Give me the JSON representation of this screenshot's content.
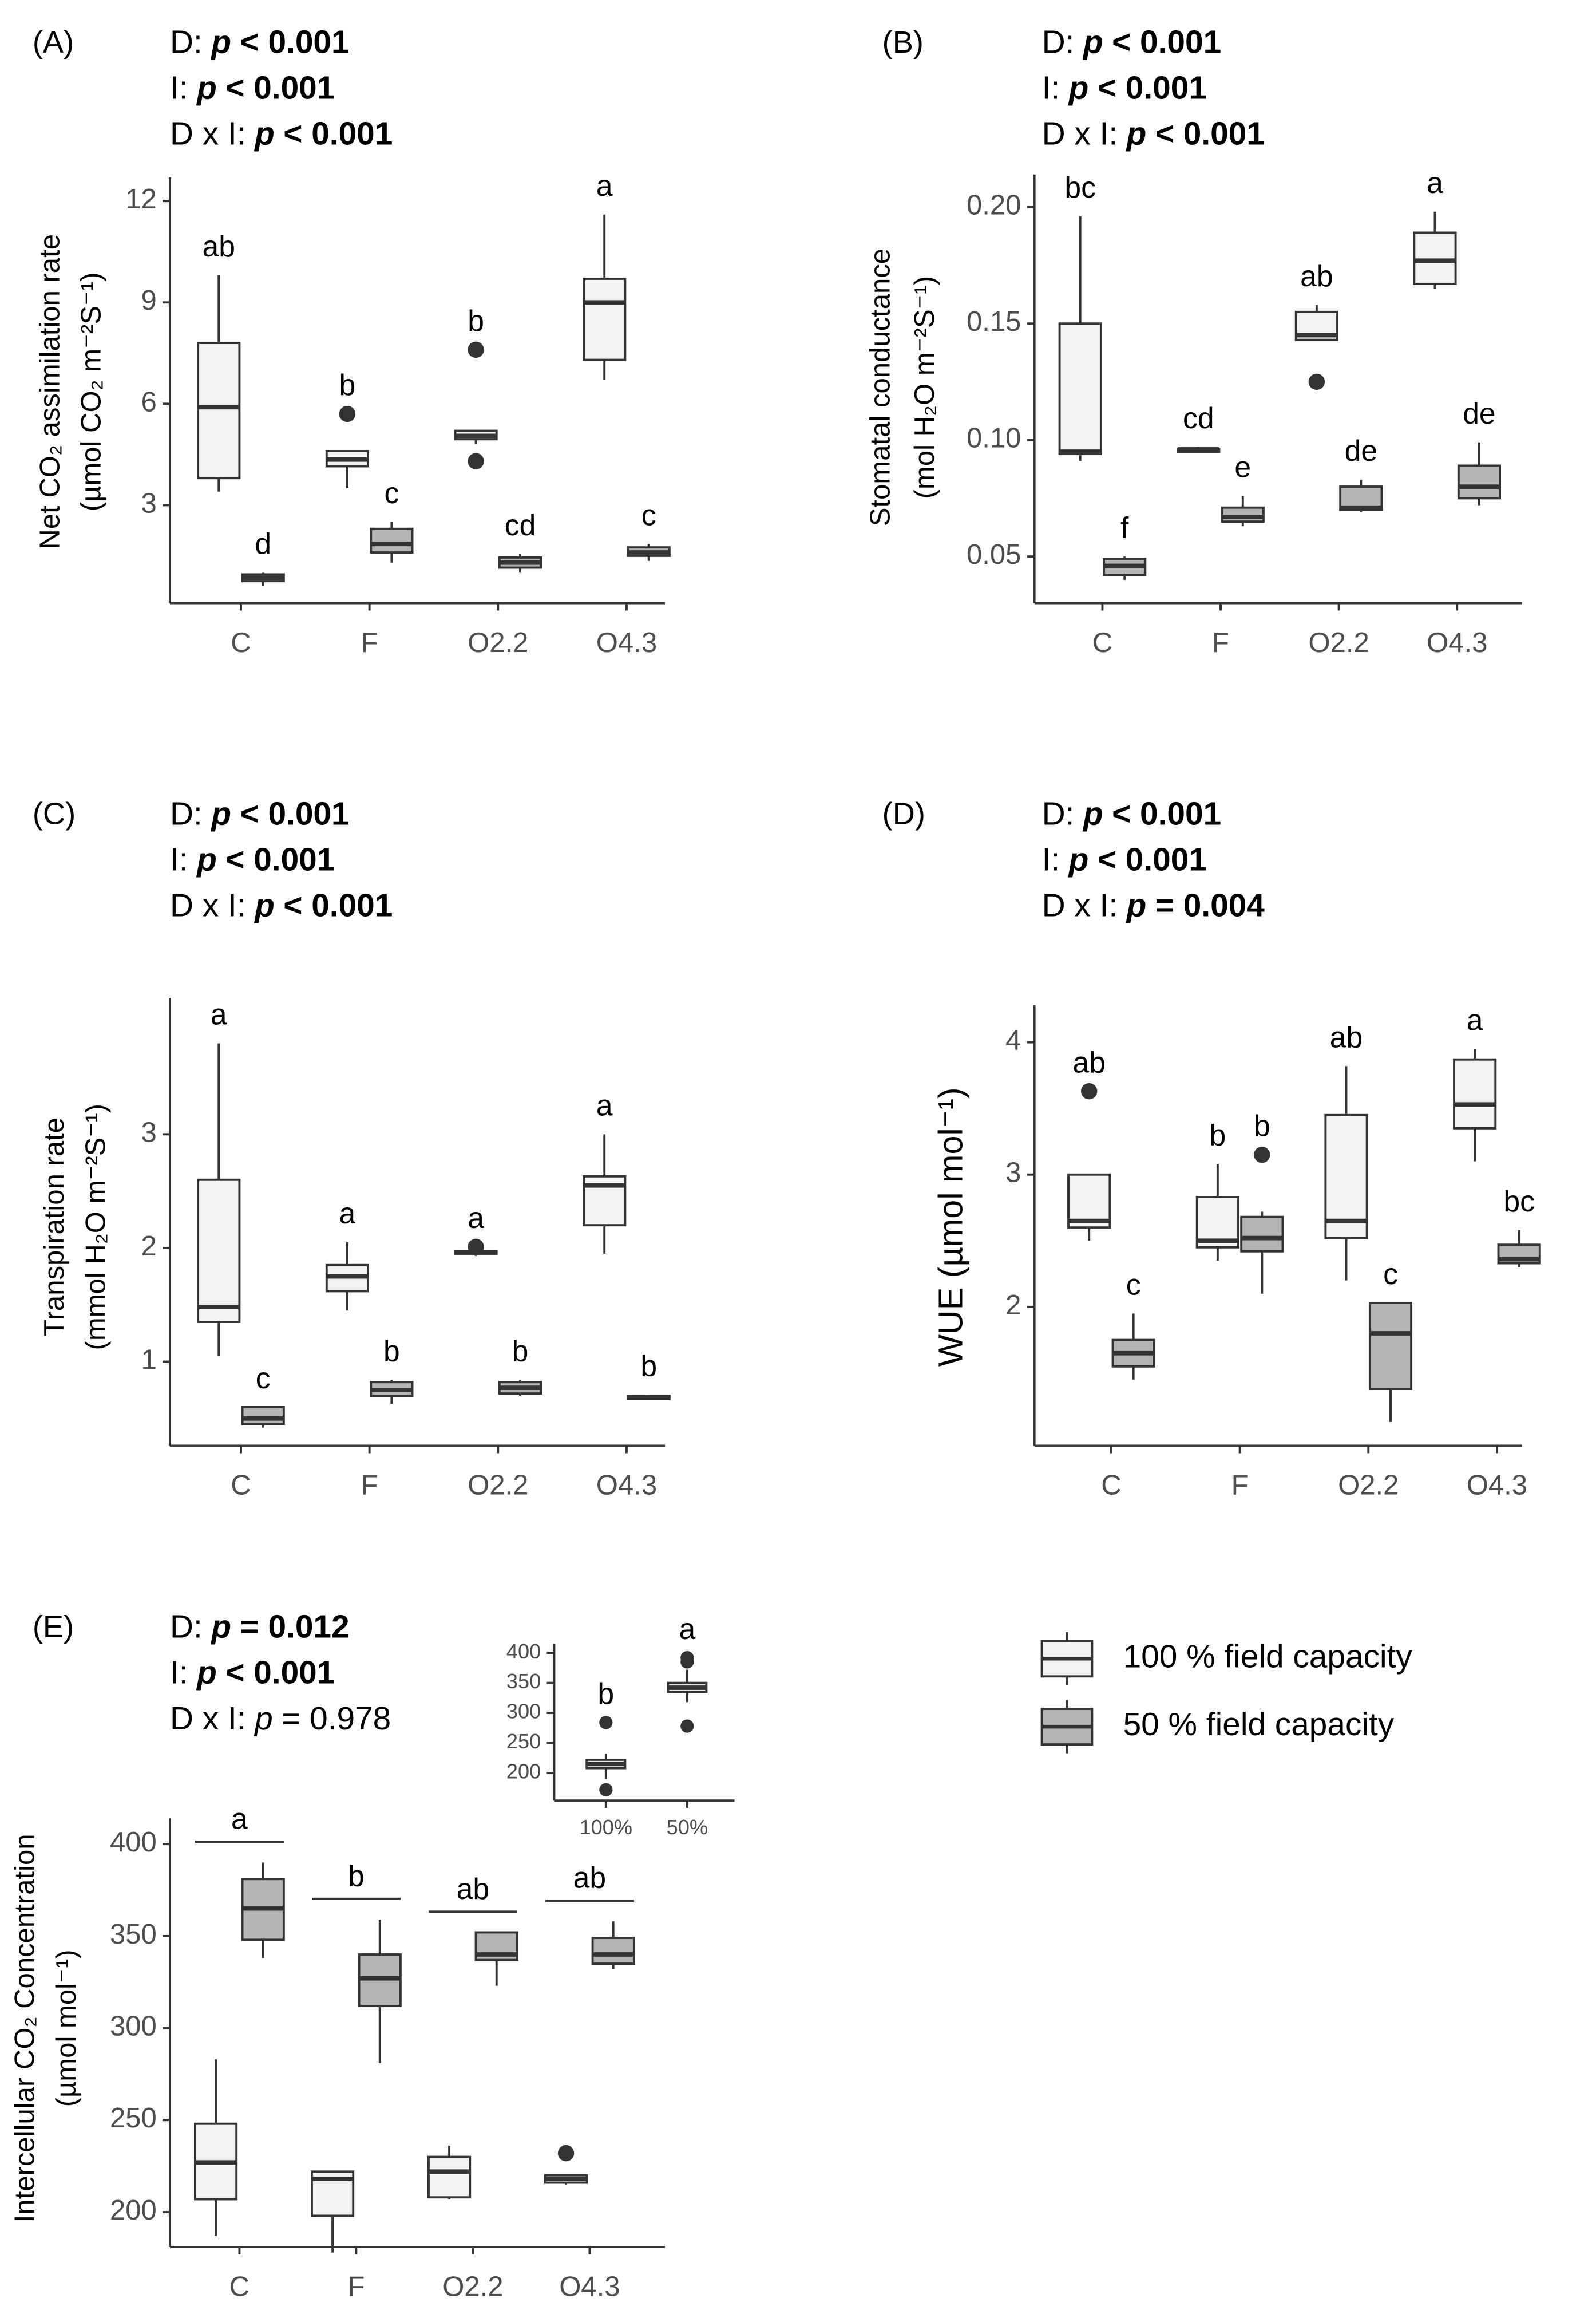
{
  "chart_data": [
    {
      "type": "box",
      "panel": "(A)",
      "stats": [
        {
          "factor": "D:",
          "symbol": "p",
          "result": "< 0.001",
          "bold": true
        },
        {
          "factor": "I:",
          "symbol": "p",
          "result": "< 0.001",
          "bold": true
        },
        {
          "factor": "D x I:",
          "symbol": "p",
          "result": "< 0.001",
          "bold": true
        }
      ],
      "ylabel": [
        "Net CO₂ assimilation rate",
        "(µmol CO₂ m⁻²S⁻¹)"
      ],
      "categories": [
        "C",
        "F",
        "O2.2",
        "O4.3"
      ],
      "ylim": [
        0.1,
        12.7
      ],
      "yticks": [
        3,
        6,
        9,
        12
      ],
      "series": [
        {
          "color": "#f2f2f2",
          "boxes": [
            {
              "low": 3.4,
              "q1": 3.8,
              "median": 5.9,
              "q3": 7.8,
              "high": 9.8,
              "outliers": [],
              "letter": "ab"
            },
            {
              "low": 3.5,
              "q1": 4.15,
              "median": 4.35,
              "q3": 4.6,
              "high": 4.6,
              "outliers": [
                5.7
              ],
              "letter": "b"
            },
            {
              "low": 4.8,
              "q1": 4.95,
              "median": 5.05,
              "q3": 5.2,
              "high": 5.2,
              "outliers": [
                4.3,
                7.6
              ],
              "letter": "b"
            },
            {
              "low": 6.7,
              "q1": 7.3,
              "median": 9.0,
              "q3": 9.7,
              "high": 11.6,
              "outliers": [],
              "letter": "a"
            }
          ]
        },
        {
          "color": "#b5b5b5",
          "boxes": [
            {
              "low": 0.6,
              "q1": 0.75,
              "median": 0.85,
              "q3": 0.95,
              "high": 1.0,
              "outliers": [],
              "letter": "d"
            },
            {
              "low": 1.3,
              "q1": 1.6,
              "median": 1.85,
              "q3": 2.3,
              "high": 2.5,
              "outliers": [],
              "letter": "c"
            },
            {
              "low": 1.0,
              "q1": 1.15,
              "median": 1.3,
              "q3": 1.45,
              "high": 1.55,
              "outliers": [],
              "letter": "cd"
            },
            {
              "low": 1.35,
              "q1": 1.5,
              "median": 1.6,
              "q3": 1.75,
              "high": 1.85,
              "outliers": [],
              "letter": "c"
            }
          ]
        }
      ]
    },
    {
      "type": "box",
      "panel": "(B)",
      "stats": [
        {
          "factor": "D:",
          "symbol": "p",
          "result": "< 0.001",
          "bold": true
        },
        {
          "factor": "I:",
          "symbol": "p",
          "result": "< 0.001",
          "bold": true
        },
        {
          "factor": "D x I:",
          "symbol": "p",
          "result": "< 0.001",
          "bold": true
        }
      ],
      "ylabel": [
        "Stomatal conductance",
        "(mol H₂O m⁻²S⁻¹)"
      ],
      "categories": [
        "C",
        "F",
        "O2.2",
        "O4.3"
      ],
      "ylim": [
        0.03,
        0.214
      ],
      "yticks": [
        0.05,
        {
          "value": 0.1,
          "label": "0.10"
        },
        0.15,
        {
          "value": 0.2,
          "label": "0.20"
        }
      ],
      "series": [
        {
          "color": "#f2f2f2",
          "boxes": [
            {
              "low": 0.091,
              "q1": 0.094,
              "median": 0.095,
              "q3": 0.15,
              "high": 0.196,
              "outliers": [],
              "letter": "bc"
            },
            {
              "low": 0.095,
              "q1": 0.095,
              "median": 0.096,
              "q3": 0.096,
              "high": 0.097,
              "outliers": [],
              "letter": "cd"
            },
            {
              "low": 0.143,
              "q1": 0.143,
              "median": 0.145,
              "q3": 0.155,
              "high": 0.158,
              "outliers": [
                0.125
              ],
              "letter": "ab"
            },
            {
              "low": 0.165,
              "q1": 0.167,
              "median": 0.177,
              "q3": 0.189,
              "high": 0.198,
              "outliers": [],
              "letter": "a"
            }
          ]
        },
        {
          "color": "#b5b5b5",
          "boxes": [
            {
              "low": 0.04,
              "q1": 0.042,
              "median": 0.046,
              "q3": 0.049,
              "high": 0.05,
              "outliers": [],
              "letter": "f"
            },
            {
              "low": 0.063,
              "q1": 0.065,
              "median": 0.067,
              "q3": 0.071,
              "high": 0.076,
              "outliers": [],
              "letter": "e"
            },
            {
              "low": 0.069,
              "q1": 0.07,
              "median": 0.071,
              "q3": 0.08,
              "high": 0.083,
              "outliers": [],
              "letter": "de"
            },
            {
              "low": 0.072,
              "q1": 0.075,
              "median": 0.08,
              "q3": 0.089,
              "high": 0.099,
              "outliers": [],
              "letter": "de"
            }
          ]
        }
      ]
    },
    {
      "type": "box",
      "panel": "(C)",
      "stats": [
        {
          "factor": "D:",
          "symbol": "p",
          "result": "< 0.001",
          "bold": true
        },
        {
          "factor": "I:",
          "symbol": "p",
          "result": "< 0.001",
          "bold": true
        },
        {
          "factor": "D x I:",
          "symbol": "p",
          "result": "< 0.001",
          "bold": true
        }
      ],
      "ylabel": [
        "Transpiration rate",
        "(mmol H₂O m⁻²S⁻¹)"
      ],
      "categories": [
        "C",
        "F",
        "O2.2",
        "O4.3"
      ],
      "ylim": [
        0.26,
        4.2
      ],
      "yticks": [
        1,
        2,
        3
      ],
      "series": [
        {
          "color": "#f2f2f2",
          "boxes": [
            {
              "low": 1.05,
              "q1": 1.35,
              "median": 1.48,
              "q3": 2.6,
              "high": 3.8,
              "outliers": [],
              "letter": "a"
            },
            {
              "low": 1.45,
              "q1": 1.62,
              "median": 1.75,
              "q3": 1.85,
              "high": 2.05,
              "outliers": [],
              "letter": "a"
            },
            {
              "low": 1.93,
              "q1": 1.95,
              "median": 1.96,
              "q3": 1.97,
              "high": 1.98,
              "outliers": [
                2.01
              ],
              "letter": "a"
            },
            {
              "low": 1.95,
              "q1": 2.2,
              "median": 2.55,
              "q3": 2.63,
              "high": 3.0,
              "outliers": [],
              "letter": "a"
            }
          ]
        },
        {
          "color": "#b5b5b5",
          "boxes": [
            {
              "low": 0.42,
              "q1": 0.45,
              "median": 0.5,
              "q3": 0.6,
              "high": 0.6,
              "outliers": [],
              "letter": "c"
            },
            {
              "low": 0.63,
              "q1": 0.7,
              "median": 0.75,
              "q3": 0.82,
              "high": 0.84,
              "outliers": [],
              "letter": "b"
            },
            {
              "low": 0.7,
              "q1": 0.72,
              "median": 0.77,
              "q3": 0.82,
              "high": 0.84,
              "outliers": [],
              "letter": "b"
            },
            {
              "low": 0.66,
              "q1": 0.67,
              "median": 0.68,
              "q3": 0.7,
              "high": 0.71,
              "outliers": [],
              "letter": "b"
            }
          ]
        }
      ]
    },
    {
      "type": "box",
      "panel": "(D)",
      "stats": [
        {
          "factor": "D:",
          "symbol": "p",
          "result": "< 0.001",
          "bold": true
        },
        {
          "factor": "I:",
          "symbol": "p",
          "result": "< 0.001",
          "bold": true
        },
        {
          "factor": "D x I:",
          "symbol": "p",
          "result": "= 0.004",
          "bold": true
        }
      ],
      "ylabel": [
        "WUE (µmol mol⁻¹)"
      ],
      "categories": [
        "C",
        "F",
        "O2.2",
        "O4.3"
      ],
      "ylim": [
        0.95,
        4.28
      ],
      "yticks": [
        2,
        3,
        4
      ],
      "series": [
        {
          "color": "#f2f2f2",
          "boxes": [
            {
              "low": 2.5,
              "q1": 2.6,
              "median": 2.65,
              "q3": 3.0,
              "high": 3.0,
              "outliers": [
                3.63
              ],
              "letter": "ab"
            },
            {
              "low": 2.35,
              "q1": 2.45,
              "median": 2.5,
              "q3": 2.83,
              "high": 3.08,
              "outliers": [],
              "letter": "b"
            },
            {
              "low": 2.2,
              "q1": 2.52,
              "median": 2.65,
              "q3": 3.45,
              "high": 3.82,
              "outliers": [],
              "letter": "ab"
            },
            {
              "low": 3.1,
              "q1": 3.35,
              "median": 3.53,
              "q3": 3.87,
              "high": 3.95,
              "outliers": [],
              "letter": "a"
            }
          ]
        },
        {
          "color": "#b5b5b5",
          "boxes": [
            {
              "low": 1.45,
              "q1": 1.55,
              "median": 1.65,
              "q3": 1.75,
              "high": 1.95,
              "outliers": [],
              "letter": "c"
            },
            {
              "low": 2.1,
              "q1": 2.42,
              "median": 2.52,
              "q3": 2.68,
              "high": 2.72,
              "outliers": [
                3.15
              ],
              "letter": "b"
            },
            {
              "low": 1.13,
              "q1": 1.38,
              "median": 1.8,
              "q3": 2.03,
              "high": 2.03,
              "outliers": [],
              "letter": "c"
            },
            {
              "low": 2.3,
              "q1": 2.33,
              "median": 2.36,
              "q3": 2.47,
              "high": 2.58,
              "outliers": [],
              "letter": "bc"
            }
          ]
        }
      ]
    },
    {
      "type": "box",
      "panel": "(E)",
      "stats": [
        {
          "factor": "D:",
          "symbol": "p",
          "result": "= 0.012",
          "bold": true
        },
        {
          "factor": "I:",
          "symbol": "p",
          "result": "< 0.001",
          "bold": true
        },
        {
          "factor": "D x I:",
          "symbol": "p",
          "result": "= 0.978",
          "bold": false
        }
      ],
      "ylabel": [
        "Intercellular CO₂ Concentration",
        "(µmol mol⁻¹)"
      ],
      "categories": [
        "C",
        "F",
        "O2.2",
        "O4.3"
      ],
      "group_letters": [
        "a",
        "b",
        "ab",
        "ab"
      ],
      "ylim": [
        181,
        414
      ],
      "yticks": [
        200,
        250,
        300,
        350,
        400
      ],
      "series": [
        {
          "color": "#f2f2f2",
          "boxes": [
            {
              "low": 187,
              "q1": 207,
              "median": 227,
              "q3": 248,
              "high": 283,
              "outliers": []
            },
            {
              "low": 178,
              "q1": 198,
              "median": 218,
              "q3": 222,
              "high": 222,
              "outliers": []
            },
            {
              "low": 207,
              "q1": 208,
              "median": 222,
              "q3": 230,
              "high": 236,
              "outliers": []
            },
            {
              "low": 215,
              "q1": 216,
              "median": 218,
              "q3": 220,
              "high": 220,
              "outliers": [
                232
              ]
            }
          ]
        },
        {
          "color": "#b5b5b5",
          "boxes": [
            {
              "low": 338,
              "q1": 348,
              "median": 365,
              "q3": 381,
              "high": 390,
              "outliers": []
            },
            {
              "low": 281,
              "q1": 312,
              "median": 327,
              "q3": 340,
              "high": 359,
              "outliers": []
            },
            {
              "low": 323,
              "q1": 337,
              "median": 340,
              "q3": 352,
              "high": 352,
              "outliers": []
            },
            {
              "low": 332,
              "q1": 335,
              "median": 340,
              "q3": 349,
              "high": 358,
              "outliers": []
            }
          ]
        }
      ]
    },
    {
      "type": "box",
      "categories": [
        "100%",
        "50%"
      ],
      "ylim": [
        154,
        415
      ],
      "yticks": [
        200,
        250,
        300,
        350,
        400
      ],
      "series": [
        {
          "color": "#ebebeb",
          "boxes": [
            {
              "low": 190,
              "q1": 208,
              "median": 215,
              "q3": 222,
              "high": 232,
              "outliers": [
                284,
                172
              ],
              "letter": "b"
            },
            {
              "low": 318,
              "q1": 335,
              "median": 342,
              "q3": 350,
              "high": 372,
              "outliers": [
                278,
                385,
                392
              ],
              "letter": "a"
            }
          ]
        }
      ]
    }
  ],
  "legend": {
    "series": [
      {
        "name": "100 % field capacity",
        "color": "#f2f2f2"
      },
      {
        "name": "50 % field capacity",
        "color": "#b5b5b5"
      }
    ]
  }
}
